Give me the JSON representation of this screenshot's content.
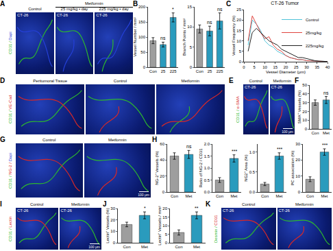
{
  "chart_data": [
    {
      "type": "bar",
      "y_label": "Vessel Number / mm²",
      "categories": [
        "Con",
        "25",
        "225"
      ],
      "values": [
        88,
        75,
        165
      ],
      "errors": [
        10,
        8,
        15
      ],
      "colors": [
        "#9e9e9e",
        "#2a9bbd",
        "#2a9bbd"
      ],
      "ylim": [
        0,
        200
      ],
      "yticks": [
        0,
        50,
        100,
        150,
        200
      ],
      "annotations": [
        {
          "category": "25",
          "text": "ns"
        },
        {
          "category": "225",
          "text": "*"
        }
      ]
    },
    {
      "type": "bar",
      "y_label": "Branch Points / mm²",
      "categories": [
        "Con",
        "25",
        "225"
      ],
      "values": [
        9.5,
        9,
        11.5
      ],
      "errors": [
        1,
        1.2,
        2
      ],
      "colors": [
        "#9e9e9e",
        "#2a9bbd",
        "#2a9bbd"
      ],
      "ylim": [
        0,
        15
      ],
      "yticks": [
        0,
        5,
        10,
        15
      ],
      "annotations": [
        {
          "category": "25",
          "text": "ns"
        },
        {
          "category": "225",
          "text": "ns"
        }
      ]
    },
    {
      "type": "line",
      "title": "CT-26 Tumor",
      "x_label": "Vessel Diameter (μm)",
      "y_label": "Vessel Frequency (%)",
      "x": [
        2,
        4,
        6,
        8,
        10,
        12,
        14,
        16,
        18,
        20,
        22,
        24,
        26,
        28,
        30,
        32,
        34,
        36,
        38,
        40
      ],
      "series": [
        {
          "name": "Control",
          "color": "#4fc3d9",
          "values": [
            8,
            20,
            18,
            15,
            10,
            8,
            7,
            5,
            4,
            3,
            2,
            1.5,
            1,
            1,
            0.5,
            0.5,
            0.3,
            0.2,
            0.2,
            0.1
          ]
        },
        {
          "name": "25mg/kg",
          "color": "#e0443e",
          "values": [
            10,
            22,
            18,
            14,
            11,
            12,
            8,
            6,
            5,
            3,
            2,
            1.5,
            1,
            1,
            0.5,
            0.4,
            0.3,
            0.2,
            0.1,
            0.1
          ]
        },
        {
          "name": "225mg/kg",
          "color": "#222222",
          "values": [
            5,
            14,
            16,
            14,
            12,
            10,
            9,
            8,
            6,
            5,
            4,
            3,
            2,
            2,
            1.5,
            1,
            0.5,
            0.3,
            0.2,
            0.1
          ]
        }
      ],
      "xlim": [
        0,
        40
      ],
      "xticks": [
        0,
        5,
        10,
        15,
        20,
        25,
        30,
        35,
        40
      ],
      "ylim": [
        0,
        25
      ],
      "yticks": [
        0,
        5,
        10,
        15,
        20,
        25
      ],
      "legend": "upper right"
    },
    {
      "type": "bar",
      "y_label": "SMA⁺ Vessels (%)",
      "categories": [
        "Con",
        "Met"
      ],
      "values": [
        30,
        33
      ],
      "errors": [
        3,
        4
      ],
      "colors": [
        "#9e9e9e",
        "#2a9bbd"
      ],
      "ylim": [
        0,
        50
      ],
      "yticks": [
        0,
        10,
        20,
        30,
        40,
        50
      ],
      "annotations": [
        {
          "category": "Met",
          "text": "ns"
        }
      ]
    },
    {
      "type": "bar",
      "y_label": "NG-2⁺ Vessels (%)",
      "categories": [
        "Con",
        "Met"
      ],
      "values": [
        45,
        47
      ],
      "errors": [
        4,
        5
      ],
      "colors": [
        "#9e9e9e",
        "#2a9bbd"
      ],
      "ylim": [
        0,
        60
      ],
      "yticks": [
        0,
        20,
        40,
        60
      ],
      "annotations": [
        {
          "category": "Met",
          "text": "ns"
        }
      ]
    },
    {
      "type": "bar",
      "y_label": "Ratio of NG-2 / CD31",
      "categories": [
        "Con",
        "Met"
      ],
      "values": [
        0.5,
        1.4
      ],
      "errors": [
        0.1,
        0.15
      ],
      "colors": [
        "#9e9e9e",
        "#2a9bbd"
      ],
      "ylim": [
        0,
        2
      ],
      "yticks": [
        {
          "value": 0,
          "label": "0.0"
        },
        {
          "value": 0.5,
          "label": "0.5"
        },
        {
          "value": 1,
          "label": "1.0"
        },
        {
          "value": 1.5,
          "label": "1.5"
        },
        {
          "value": 2,
          "label": "2.0"
        }
      ],
      "annotations": [
        {
          "category": "Met",
          "text": "***"
        }
      ]
    },
    {
      "type": "bar",
      "y_label": "NG2⁺ Area (%)",
      "categories": [
        "Con",
        "Met"
      ],
      "values": [
        0.2,
        0.9
      ],
      "errors": [
        0.04,
        0.08
      ],
      "colors": [
        "#9e9e9e",
        "#2a9bbd"
      ],
      "ylim": [
        0,
        1.2
      ],
      "yticks": [
        {
          "value": 0,
          "label": "0.0"
        },
        {
          "value": 0.5,
          "label": "0.5"
        },
        {
          "value": 1,
          "label": "1.0"
        }
      ],
      "annotations": [
        {
          "category": "Met",
          "text": "***"
        }
      ]
    },
    {
      "type": "bar",
      "y_label": "PC association (%)",
      "categories": [
        "Con",
        "Met"
      ],
      "values": [
        8,
        25
      ],
      "errors": [
        1.5,
        2
      ],
      "colors": [
        "#9e9e9e",
        "#2a9bbd"
      ],
      "ylim": [
        0,
        30
      ],
      "yticks": [
        0,
        10,
        20,
        30
      ],
      "annotations": [
        {
          "category": "Met",
          "text": "***"
        }
      ]
    },
    {
      "type": "bar",
      "y_label": "Lectin⁺ Vessels (%)",
      "categories": [
        "Con",
        "Met"
      ],
      "values": [
        16,
        24
      ],
      "errors": [
        2,
        3
      ],
      "colors": [
        "#9e9e9e",
        "#2a9bbd"
      ],
      "ylim": [
        0,
        30
      ],
      "yticks": [
        0,
        10,
        20,
        30
      ],
      "annotations": [
        {
          "category": "Met",
          "text": "*"
        }
      ]
    },
    {
      "type": "bar",
      "y_label": "Lectin⁺ Vessels / mm²",
      "categories": [
        "Con",
        "Met"
      ],
      "values": [
        6,
        16
      ],
      "errors": [
        1.5,
        2
      ],
      "colors": [
        "#9e9e9e",
        "#2a9bbd"
      ],
      "ylim": [
        0,
        20
      ],
      "yticks": [
        0,
        5,
        10,
        15,
        20
      ],
      "annotations": [
        {
          "category": "Met",
          "text": "**"
        }
      ]
    }
  ],
  "figure": {
    "letters": [
      "A",
      "B",
      "C",
      "D",
      "E",
      "F",
      "G",
      "H",
      "I",
      "J",
      "K"
    ],
    "image_panels": [
      {
        "stain": [
          {
            "text": "CD31 / ",
            "color": "#2db82d"
          },
          {
            "text": "Dapi",
            "color": "#2540d8"
          }
        ],
        "group": {
          "text": "Metformin",
          "from": 1
        },
        "tiles": [
          {
            "caption": "Control",
            "tag": "CT-26"
          },
          {
            "caption": "25 mg/kg • day",
            "tag": "CT-26"
          },
          {
            "caption": "225 mg/kg • day",
            "tag": "CT-26"
          }
        ]
      },
      {
        "stain": [
          {
            "text": "CD31 / ",
            "color": "#2db82d"
          },
          {
            "text": "VE-Cad",
            "color": "#d62828"
          }
        ],
        "tiles": [
          {
            "caption": "Peritumoral Tissue"
          },
          {
            "caption": "Control"
          },
          {
            "caption": "Metformin"
          }
        ]
      },
      {
        "stain": [
          {
            "text": "CD31 / ",
            "color": "#2db82d"
          },
          {
            "text": "α-SMA",
            "color": "#d62828"
          }
        ],
        "tiles": [
          {
            "caption": "Control",
            "tag": "CT-26"
          },
          {
            "caption": "Metformin",
            "tag": "CT-26"
          }
        ],
        "scale_bar": "100 μm"
      },
      {
        "stain": [
          {
            "text": "CD31 / ",
            "color": "#2db82d"
          },
          {
            "text": "NG-2 / ",
            "color": "#d62828"
          },
          {
            "text": "Dapi",
            "color": "#2540d8"
          }
        ],
        "tiles": [
          {
            "caption": "Control"
          },
          {
            "caption": "Metformin"
          }
        ],
        "scale_bar": "100 μm"
      },
      {
        "stain": [
          {
            "text": "CD31 / ",
            "color": "#2db82d"
          },
          {
            "text": "Lectin",
            "color": "#d62828"
          }
        ],
        "tiles": [
          {
            "caption": "Control",
            "tag": "CT-26"
          },
          {
            "caption": "Metformin",
            "tag": "CT-26"
          }
        ],
        "scale_bar": "100 μm"
      },
      {
        "stain": [
          {
            "text": "Desmin / ",
            "color": "#2db82d"
          },
          {
            "text": "CD31",
            "color": "#d62828"
          }
        ],
        "tiles": [
          {
            "caption": "Control",
            "tag": "CT-26"
          },
          {
            "caption": "Metformin",
            "tag": "CT-26"
          }
        ]
      }
    ]
  }
}
